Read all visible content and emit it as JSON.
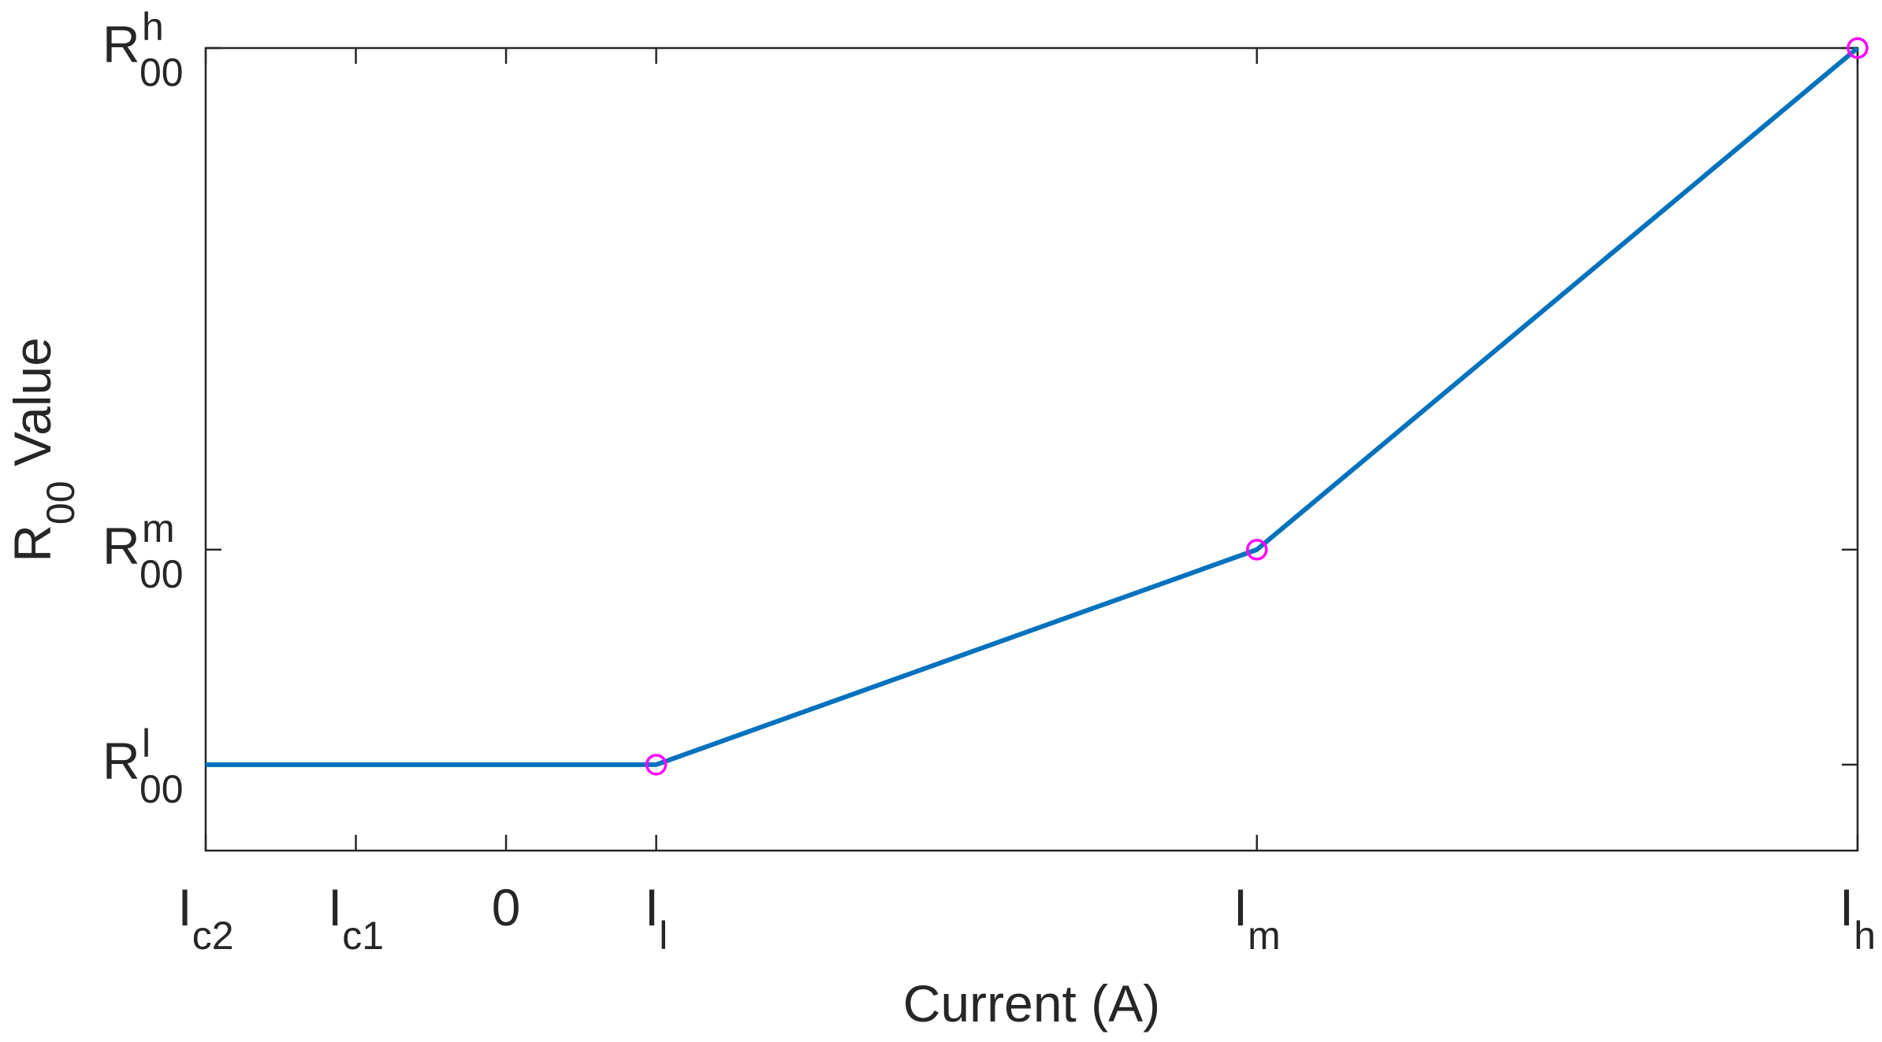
{
  "chart_data": {
    "type": "line",
    "xlabel": {
      "main": "Current (A)"
    },
    "ylabel": {
      "base": "R",
      "sub": "00",
      "rest": " Value"
    },
    "grid": false,
    "box": true,
    "xlim": [
      0,
      11
    ],
    "ylim": [
      -0.6,
      5
    ],
    "x_ticks": [
      {
        "value": 0,
        "base": "I",
        "sub": "c2",
        "sup": ""
      },
      {
        "value": 1,
        "base": "I",
        "sub": "c1",
        "sup": ""
      },
      {
        "value": 2,
        "base": "0",
        "sub": "",
        "sup": ""
      },
      {
        "value": 3,
        "base": "I",
        "sub": "l",
        "sup": ""
      },
      {
        "value": 7,
        "base": "I",
        "sub": "m",
        "sup": ""
      },
      {
        "value": 11,
        "base": "I",
        "sub": "h",
        "sup": ""
      }
    ],
    "y_ticks": [
      {
        "value": 0,
        "base": "R",
        "sub": "00",
        "sup": "l"
      },
      {
        "value": 1.5,
        "base": "R",
        "sub": "00",
        "sup": "m"
      },
      {
        "value": 5,
        "base": "R",
        "sub": "00",
        "sup": "h"
      }
    ],
    "series": [
      {
        "color": "#0072BD",
        "x": [
          0,
          3,
          7,
          11
        ],
        "y": [
          0,
          0,
          1.5,
          5
        ]
      }
    ],
    "markers": {
      "color": "#FF00FF",
      "symbol": "circle",
      "x": [
        3,
        7,
        11
      ],
      "y": [
        0,
        1.5,
        5
      ]
    }
  }
}
